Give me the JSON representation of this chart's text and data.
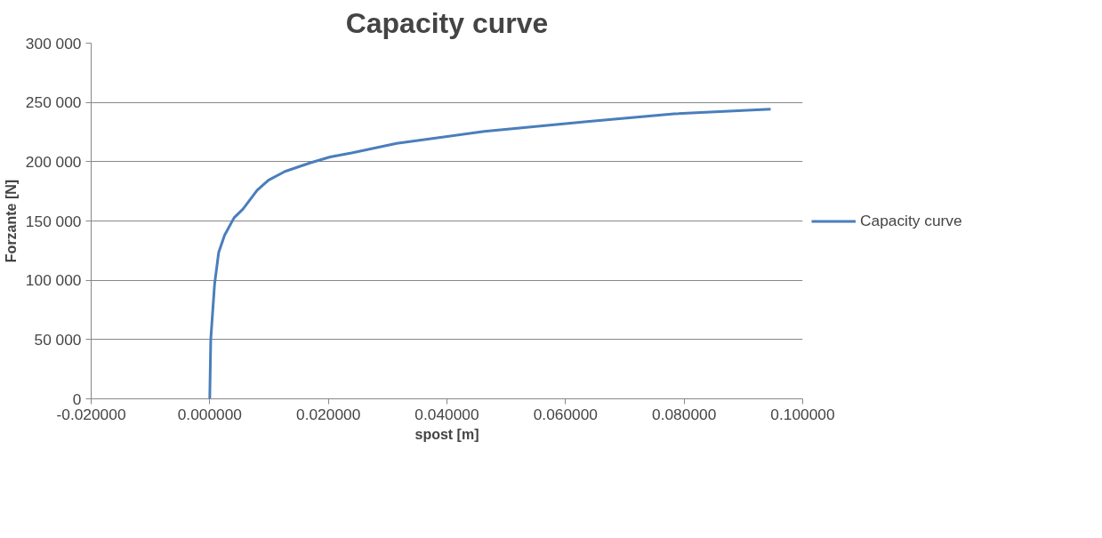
{
  "chart_data": {
    "type": "line",
    "title": "Capacity curve",
    "xlabel": "spost [m]",
    "ylabel": "Forzante [N]",
    "xlim": [
      -0.02,
      0.1
    ],
    "ylim": [
      0,
      300000
    ],
    "xticks": [
      {
        "value": -0.02,
        "label": "-0.020000"
      },
      {
        "value": 0,
        "label": "0.000000"
      },
      {
        "value": 0.02,
        "label": "0.020000"
      },
      {
        "value": 0.04,
        "label": "0.040000"
      },
      {
        "value": 0.06,
        "label": "0.060000"
      },
      {
        "value": 0.08,
        "label": "0.080000"
      },
      {
        "value": 0.1,
        "label": "0.100000"
      }
    ],
    "yticks": [
      {
        "value": 0,
        "label": "0"
      },
      {
        "value": 50000,
        "label": "50 000"
      },
      {
        "value": 100000,
        "label": "100 000"
      },
      {
        "value": 150000,
        "label": "150 000"
      },
      {
        "value": 200000,
        "label": "200 000"
      },
      {
        "value": 250000,
        "label": "250 000"
      },
      {
        "value": 300000,
        "label": "300 000"
      }
    ],
    "grid": "y",
    "legend": "right",
    "marker": "none",
    "line_style": "solid",
    "series": [
      {
        "name": "Capacity curve",
        "color": "#4a7ebb",
        "x": [
          0,
          0.00017,
          0.00081,
          0.0015,
          0.0025,
          0.0041,
          0.0056,
          0.008,
          0.0099,
          0.0127,
          0.017,
          0.0203,
          0.0241,
          0.0315,
          0.0463,
          0.0636,
          0.0783,
          0.0946
        ],
        "values": [
          0,
          50100,
          96500,
          123400,
          138000,
          152700,
          160000,
          175900,
          184400,
          191800,
          199100,
          204000,
          207500,
          215400,
          225500,
          233800,
          240400,
          244400
        ]
      }
    ]
  }
}
